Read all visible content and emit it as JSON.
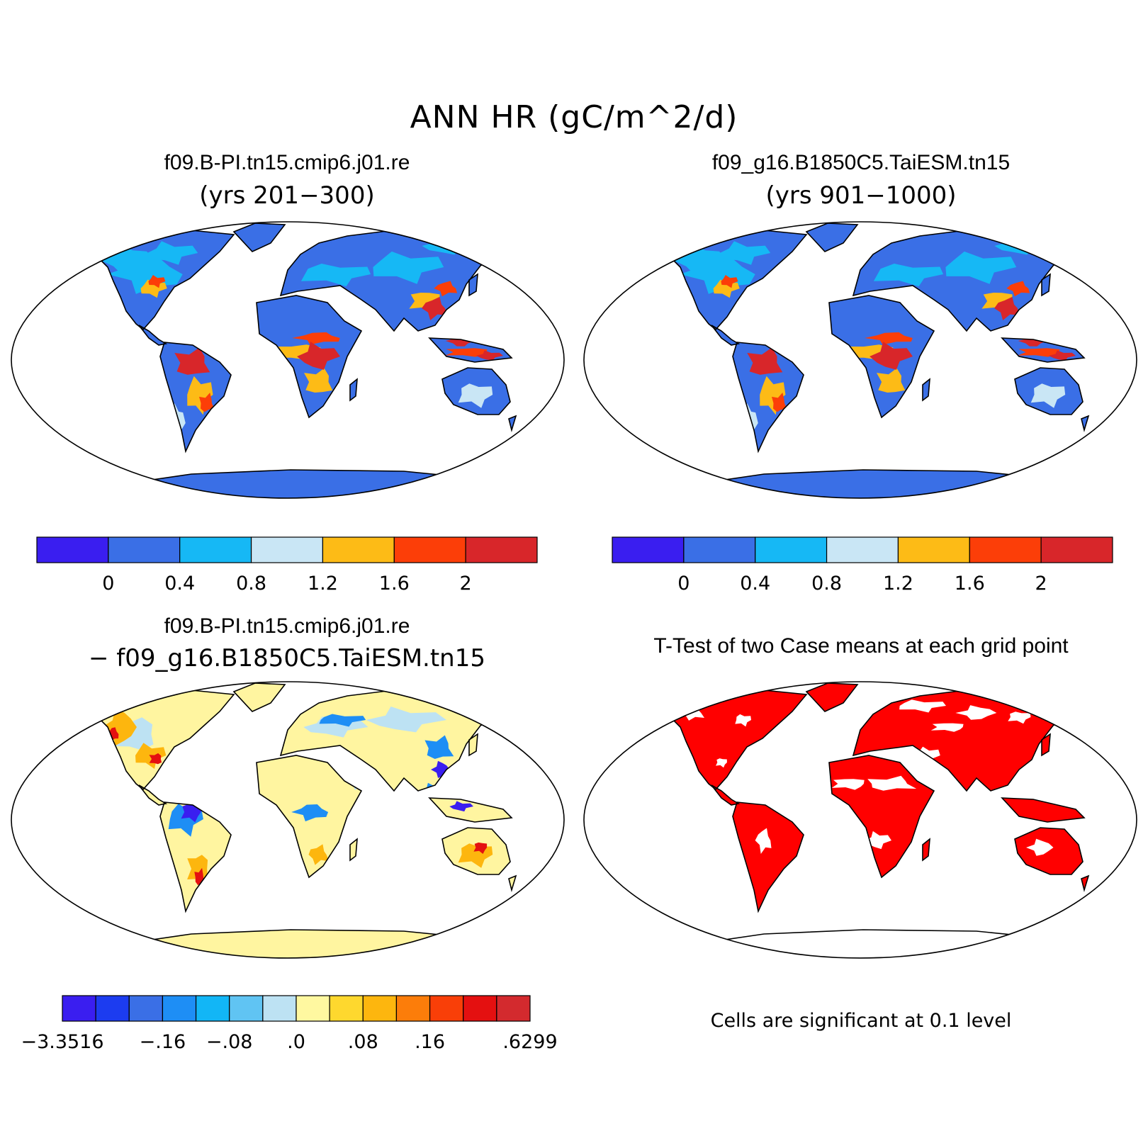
{
  "title": "ANN HR (gC/m^2/d)",
  "panels": {
    "top_left": {
      "title": "f09.B-PI.tn15.cmip6.j01.re",
      "subtitle": "(yrs 201−300)"
    },
    "top_right": {
      "title": "f09_g16.B1850C5.TaiESM.tn15",
      "subtitle": "(yrs 901−1000)"
    },
    "bottom_left": {
      "title": "f09.B-PI.tn15.cmip6.j01.re",
      "subtitle": "− f09_g16.B1850C5.TaiESM.tn15"
    },
    "bottom_right": {
      "title": "T-Test of two Case means at each grid point",
      "note": "Cells are significant at 0.1 level"
    }
  },
  "colorbars": {
    "field": {
      "colors": [
        "#3a1ef0",
        "#3a6fe6",
        "#16b8f5",
        "#c9e6f5",
        "#fdbb16",
        "#fc3e08",
        "#d8262a"
      ],
      "ticks": [
        "0",
        "0.4",
        "0.8",
        "1.2",
        "1.6",
        "2"
      ]
    },
    "diff": {
      "colors": [
        "#3a1ef0",
        "#1c3cf0",
        "#3a6fe6",
        "#1e8ef5",
        "#12b6f6",
        "#60c4f3",
        "#bde2f3",
        "#fff8a0",
        "#fed82e",
        "#fdb60e",
        "#fc7d0a",
        "#f93f08",
        "#e41010",
        "#d32a2e"
      ],
      "ticks": [
        "−3.3516",
        "−.16",
        "−.08",
        ".0",
        ".08",
        ".16",
        ".6299"
      ]
    }
  },
  "map_colors": {
    "ocean": "#ffffff",
    "field_land": "#3a6fe6",
    "field_antarctica": "#3a6fe6",
    "diff_land": "#fff5a0",
    "ttest_land": "#ff0000",
    "coast": "#000000"
  }
}
